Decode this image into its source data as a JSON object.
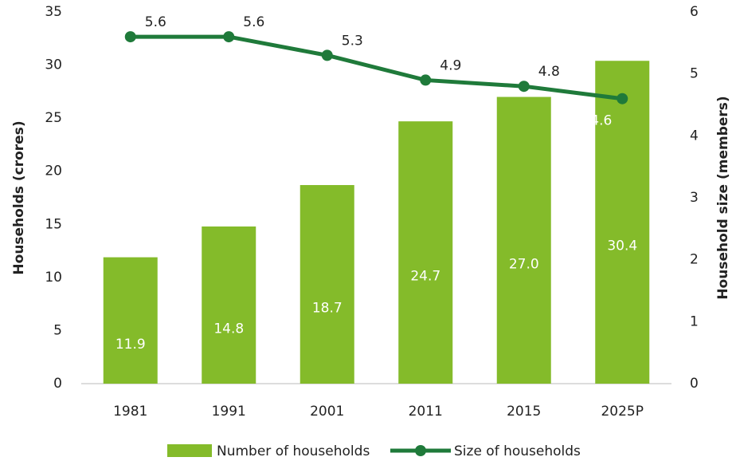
{
  "chart_data": {
    "type": "bar",
    "categories": [
      "1981",
      "1991",
      "2001",
      "2011",
      "2015",
      "2025P"
    ],
    "series": [
      {
        "name": "Number of households",
        "color": "#84bb2a",
        "type": "bar",
        "values": [
          11.9,
          14.8,
          18.7,
          24.7,
          27.0,
          30.4
        ],
        "value_labels": [
          "11.9",
          "14.8",
          "18.7",
          "24.7",
          "27.0",
          "30.4"
        ]
      },
      {
        "name": "Size of households",
        "color": "#1f7a3a",
        "type": "line",
        "axis": "y2",
        "values": [
          5.6,
          5.6,
          5.3,
          4.9,
          4.8,
          4.6
        ]
      }
    ],
    "ylabel": "Households (crores)",
    "y2label": "Household size (members)",
    "ylim": [
      0,
      35
    ],
    "yticks": [
      0,
      5,
      10,
      15,
      20,
      25,
      30,
      35
    ],
    "y2lim": [
      0,
      6
    ],
    "y2ticks": [
      0,
      1,
      2,
      3,
      4,
      5,
      6
    ],
    "grid": false,
    "legend": "bottom"
  }
}
